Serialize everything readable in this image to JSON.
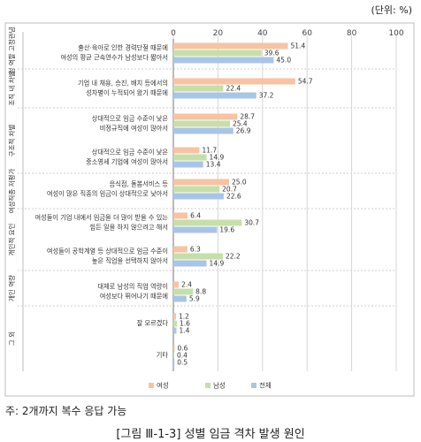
{
  "unit_label": "(단위: %)",
  "note": "주: 2개까지 복수 응답 가능",
  "caption": "[그림 Ⅲ-1-3] 성별 임금 격차 발생 원인",
  "colors": {
    "female": "#f7c3a3",
    "male": "#c6dfa8",
    "total": "#a9c5e6",
    "axis": "#777777",
    "grid": "#d6d6d6"
  },
  "chart_data": {
    "type": "bar",
    "orientation": "horizontal",
    "xlim": [
      0,
      100
    ],
    "x_ticks": [
      0,
      20,
      40,
      60,
      80,
      100
    ],
    "legend": {
      "placement": "bottom-center",
      "entries": [
        "여성",
        "남성",
        "전체"
      ]
    },
    "groups": [
      {
        "label": "성 역할 고정관념",
        "categories": [
          {
            "lines": [
              "출산·육아로 인한 경력단절 때문에",
              "여성의 평균 근속연수가 남성보다 짧아서"
            ],
            "values": [
              51.4,
              39.6,
              45.0
            ],
            "labels": [
              "51.4",
              "39.6",
              "45.0"
            ]
          }
        ]
      },
      {
        "label": "조직 내 차별",
        "categories": [
          {
            "lines": [
              "기업 내 채용, 승진, 배치 등에서의",
              "성차별이 누적되어 왔기 때문에"
            ],
            "values": [
              54.7,
              22.4,
              37.2
            ],
            "labels": [
              "54.7",
              "22.4",
              "37.2"
            ]
          }
        ]
      },
      {
        "label": "구조적 차별",
        "categories": [
          {
            "lines": [
              "상대적으로 임금 수준이 낮은",
              "비정규직에 여성이 많아서"
            ],
            "values": [
              28.7,
              25.4,
              26.9
            ],
            "labels": [
              "28.7",
              "25.4",
              "26.9"
            ]
          },
          {
            "lines": [
              "상대적으로 임금 수준이 낮은",
              "중소영세 기업에 여성이 많아서"
            ],
            "values": [
              11.7,
              14.9,
              13.4
            ],
            "labels": [
              "11.7",
              "14.9",
              "13.4"
            ]
          }
        ]
      },
      {
        "label": "여성직종 저평가",
        "categories": [
          {
            "lines": [
              "음식점, 돌봄서비스 등",
              "여성이 많은 직종의 임금이 상대적으로 낮아서"
            ],
            "values": [
              25.0,
              20.7,
              22.6
            ],
            "labels": [
              "25.0",
              "20.7",
              "22.6"
            ]
          }
        ]
      },
      {
        "label": "개인적 요인",
        "categories": [
          {
            "lines": [
              "여성들이 기업 내에서 임금을 더 많이 받을 수 있는",
              "힘든 일을 하지 않으려고 해서"
            ],
            "values": [
              6.4,
              30.7,
              19.6
            ],
            "labels": [
              "6.4",
              "30.7",
              "19.6"
            ]
          },
          {
            "lines": [
              "여성들이 공학계열 등 상대적으로 임금 수준이",
              "높은 직업을 선택하지 않아서"
            ],
            "values": [
              6.3,
              22.2,
              14.9
            ],
            "labels": [
              "6.3",
              "22.2",
              "14.9"
            ]
          }
        ]
      },
      {
        "label": "개인 역량",
        "categories": [
          {
            "lines": [
              "대체로 남성의 직업 역량이",
              "여성보다 뛰어나기 때문에"
            ],
            "values": [
              2.4,
              8.8,
              5.9
            ],
            "labels": [
              "2.4",
              "8.8",
              "5.9"
            ]
          }
        ]
      },
      {
        "label": "그 외",
        "categories": [
          {
            "lines": [
              "잘 모르겠다"
            ],
            "values": [
              1.2,
              1.6,
              1.4
            ],
            "labels": [
              "1.2",
              "1.6",
              "1.4"
            ]
          },
          {
            "lines": [
              "기타"
            ],
            "values": [
              0.6,
              0.4,
              0.5
            ],
            "labels": [
              "0.6",
              "0.4",
              "0.5"
            ]
          }
        ]
      }
    ]
  }
}
